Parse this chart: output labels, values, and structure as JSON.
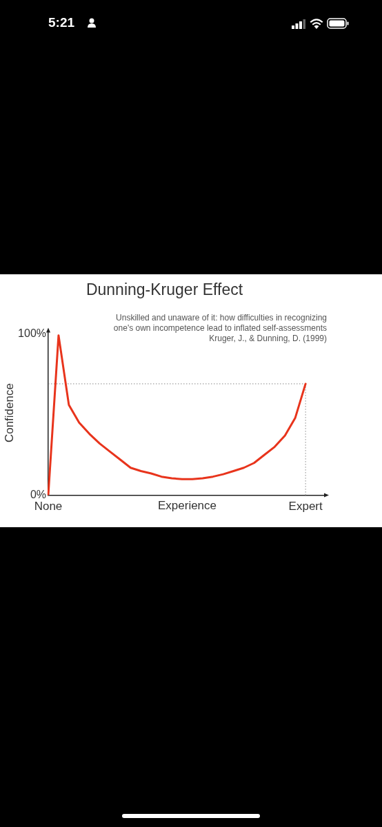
{
  "chart_data": {
    "type": "line",
    "title": "Dunning-Kruger Effect",
    "xlabel": "Experience",
    "ylabel": "Confidence",
    "annotations": [
      "5:21",
      "Unskilled and unaware of it: how difficulties in recognizing",
      "one's own incompetence lead to inflated self-assessments",
      "Kruger, J., & Dunning, D. (1999)"
    ],
    "categories": [
      "None",
      null,
      null,
      null,
      null,
      null,
      null,
      null,
      null,
      null,
      null,
      null,
      null,
      null,
      null,
      null,
      null,
      null,
      null,
      null,
      null,
      null,
      null,
      null,
      null,
      "Expert",
      null,
      null
    ],
    "series": [
      {
        "color": "#e8341c",
        "values": [
          0,
          99,
          56,
          45,
          38,
          32,
          27,
          22,
          17,
          15,
          13.5,
          11.5,
          10.5,
          10,
          10,
          10.5,
          11.5,
          13,
          15,
          17,
          20,
          25,
          30,
          37,
          48,
          69,
          null,
          null
        ]
      }
    ],
    "ylim": [
      0,
      102
    ],
    "yticks": [
      {
        "value": 0,
        "label": "0%"
      },
      {
        "value": 100,
        "label": "100%"
      }
    ],
    "ref_lines": [
      {
        "axis": "y",
        "value": 69,
        "color": "#888888",
        "line_style": "dotted"
      },
      {
        "axis": "x",
        "value": "Expert",
        "color": "#888888",
        "line_style": "dotted"
      }
    ],
    "grid": false,
    "legend": false,
    "marker": "none",
    "line_style": "solid"
  }
}
